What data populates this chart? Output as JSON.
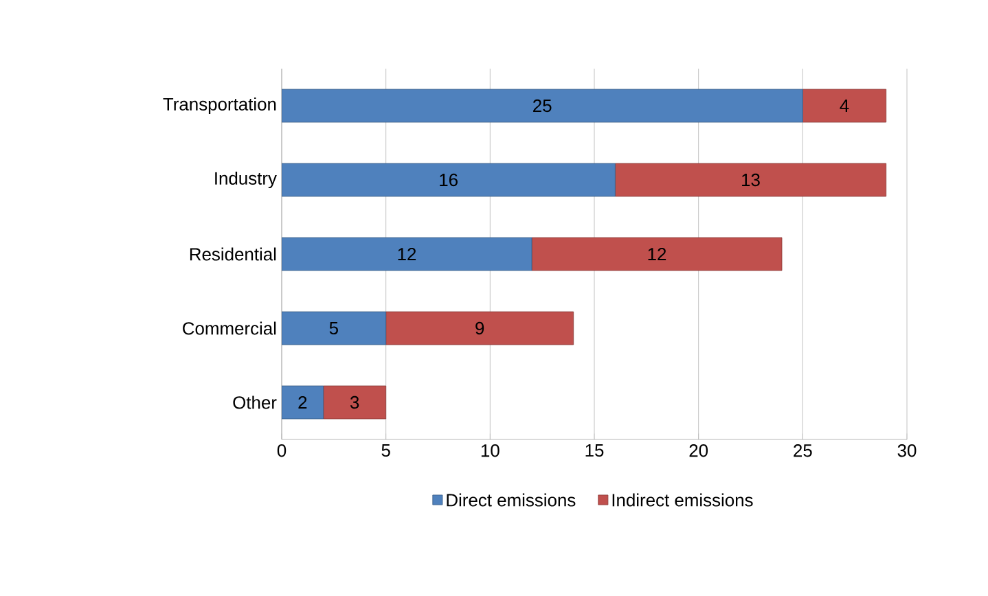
{
  "chart_data": {
    "type": "bar",
    "orientation": "horizontal",
    "stacked": true,
    "categories": [
      "Transportation",
      "Industry",
      "Residential",
      "Commercial",
      "Other"
    ],
    "series": [
      {
        "name": "Direct emissions",
        "color": "#4f81bd",
        "values": [
          25,
          16,
          12,
          5,
          2
        ]
      },
      {
        "name": "Indirect emissions",
        "color": "#c0504d",
        "values": [
          4,
          13,
          12,
          9,
          3
        ]
      }
    ],
    "xlim": [
      0,
      30
    ],
    "xticks": [
      0,
      5,
      10,
      15,
      20,
      25,
      30
    ],
    "grid": "x",
    "legend": "bottom",
    "data_labels": true
  }
}
